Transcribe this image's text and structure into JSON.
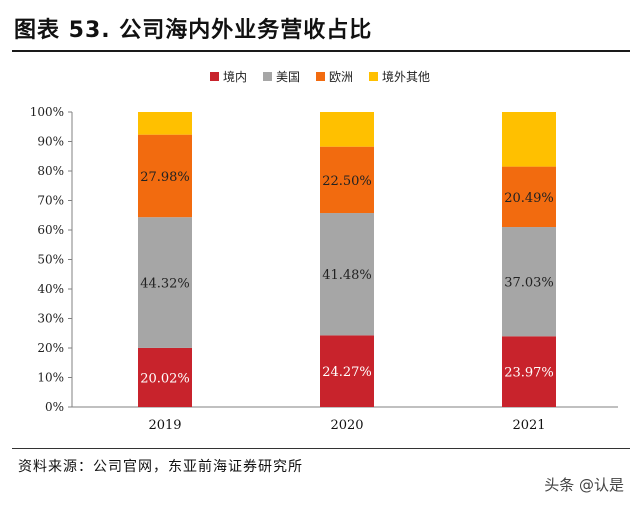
{
  "header": {
    "title": "图表 53. 公司海内外业务营收占比"
  },
  "footer": {
    "source": "资料来源：公司官网，东亚前海证券研究所",
    "watermark": "头条 @认是"
  },
  "chart_data": {
    "type": "bar",
    "stacked": true,
    "categories": [
      "2019",
      "2020",
      "2021"
    ],
    "series": [
      {
        "name": "境内",
        "color": "#c8232c",
        "values": [
          20.02,
          24.27,
          23.97
        ],
        "labels": [
          "20.02%",
          "24.27%",
          "23.97%"
        ]
      },
      {
        "name": "美国",
        "color": "#a6a6a6",
        "values": [
          44.32,
          41.48,
          37.03
        ],
        "labels": [
          "44.32%",
          "41.48%",
          "37.03%"
        ]
      },
      {
        "name": "欧洲",
        "color": "#f26b0f",
        "values": [
          27.98,
          22.5,
          20.49
        ],
        "labels": [
          "27.98%",
          "22.50%",
          "20.49%"
        ]
      },
      {
        "name": "境外其他",
        "color": "#ffc000",
        "values": [
          7.68,
          11.75,
          18.51
        ],
        "labels": [
          "",
          "",
          ""
        ]
      }
    ],
    "yticks": [
      "0%",
      "10%",
      "20%",
      "30%",
      "40%",
      "50%",
      "60%",
      "70%",
      "80%",
      "90%",
      "100%"
    ],
    "ylim": [
      0,
      100
    ],
    "legend": "top-center",
    "grid": false
  }
}
